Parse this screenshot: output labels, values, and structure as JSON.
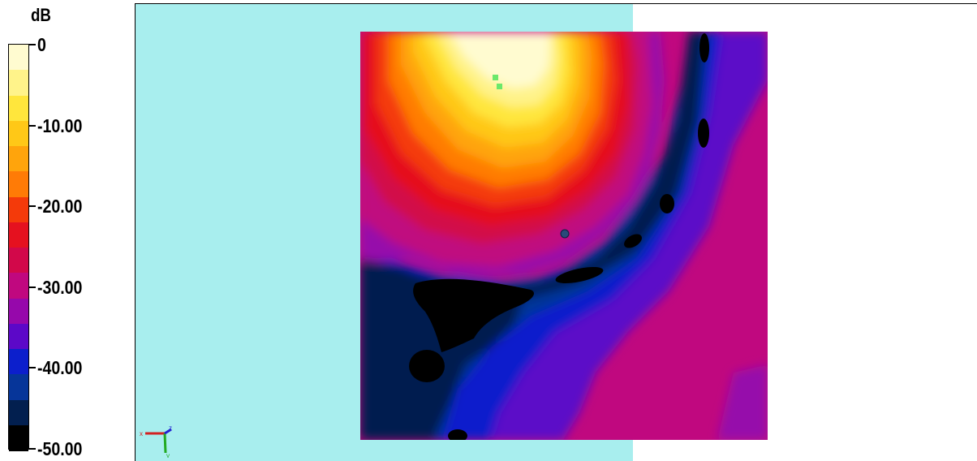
{
  "legend": {
    "unit": "dB",
    "ticks": [
      {
        "label": "0",
        "value": 0
      },
      {
        "label": "-10.00",
        "value": -10
      },
      {
        "label": "-20.00",
        "value": -20
      },
      {
        "label": "-30.00",
        "value": -30
      },
      {
        "label": "-40.00",
        "value": -40
      },
      {
        "label": "-50.00",
        "value": -50
      }
    ],
    "range": [
      -50,
      0
    ],
    "color_bands": [
      "#fffbd0",
      "#fff38a",
      "#ffe63c",
      "#ffc817",
      "#ffa40c",
      "#ff7b06",
      "#f43a0a",
      "#e5111f",
      "#d2084a",
      "#c0087f",
      "#9608ab",
      "#5c08c8",
      "#0c1fcc",
      "#063599",
      "#021f4f",
      "#000000"
    ]
  },
  "viewport": {
    "background_color": "#a8eeee",
    "field_colors": {
      "peak": "#fffbd0",
      "near_field": "#ffe63c",
      "mid": "#ff7b06",
      "low": "#c0087f",
      "deep": "#0c1fcc",
      "null": "#000000"
    },
    "markers": [
      "green-marker",
      "green-marker",
      "probe-marker"
    ],
    "axes": {
      "x": "x",
      "y": "y",
      "z": "z"
    }
  }
}
